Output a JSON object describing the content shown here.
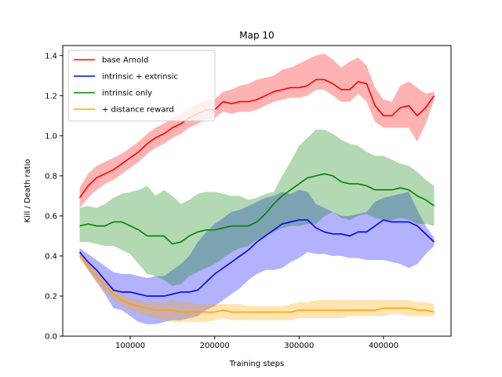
{
  "chart_data": {
    "type": "line",
    "title": "Map 10",
    "xlabel": "Training steps",
    "ylabel": "Kill / Death ratio",
    "xlim": [
      20000,
      480000
    ],
    "ylim": [
      0,
      1.45
    ],
    "xticks": [
      100000,
      200000,
      300000,
      400000
    ],
    "xtick_labels": [
      "100000",
      "200000",
      "300000",
      "400000"
    ],
    "yticks": [
      0.0,
      0.2,
      0.4,
      0.6,
      0.8,
      1.0,
      1.2,
      1.4
    ],
    "ytick_labels": [
      "0.0",
      "0.2",
      "0.4",
      "0.6",
      "0.8",
      "1.0",
      "1.2",
      "1.4"
    ],
    "grid": false,
    "legend_position": "top-left",
    "x": [
      40000,
      50000,
      60000,
      70000,
      80000,
      90000,
      100000,
      110000,
      120000,
      130000,
      140000,
      150000,
      160000,
      170000,
      180000,
      190000,
      200000,
      210000,
      220000,
      230000,
      240000,
      250000,
      260000,
      270000,
      280000,
      290000,
      300000,
      310000,
      320000,
      330000,
      340000,
      350000,
      360000,
      370000,
      380000,
      390000,
      400000,
      410000,
      420000,
      430000,
      440000,
      450000,
      460000
    ],
    "series": [
      {
        "name": "base Arnold",
        "color": "#ff0000",
        "values": [
          0.69,
          0.75,
          0.79,
          0.81,
          0.83,
          0.86,
          0.89,
          0.92,
          0.96,
          0.99,
          1.01,
          1.04,
          1.06,
          1.09,
          1.11,
          1.13,
          1.13,
          1.17,
          1.16,
          1.17,
          1.17,
          1.18,
          1.2,
          1.22,
          1.23,
          1.24,
          1.24,
          1.25,
          1.28,
          1.28,
          1.26,
          1.23,
          1.23,
          1.27,
          1.26,
          1.15,
          1.1,
          1.1,
          1.14,
          1.15,
          1.1,
          1.14,
          1.2
        ],
        "lower": [
          0.64,
          0.69,
          0.73,
          0.76,
          0.78,
          0.81,
          0.84,
          0.87,
          0.91,
          0.94,
          0.96,
          0.99,
          1.01,
          1.04,
          1.06,
          1.08,
          1.09,
          1.12,
          1.11,
          1.12,
          1.12,
          1.13,
          1.15,
          1.17,
          1.18,
          1.19,
          1.19,
          1.2,
          1.23,
          1.23,
          1.2,
          1.17,
          1.17,
          1.21,
          1.17,
          1.07,
          1.04,
          1.04,
          1.04,
          1.04,
          0.97,
          1.06,
          1.18
        ],
        "upper": [
          0.74,
          0.81,
          0.85,
          0.87,
          0.89,
          0.91,
          0.94,
          0.97,
          1.01,
          1.04,
          1.06,
          1.09,
          1.11,
          1.14,
          1.16,
          1.18,
          1.18,
          1.22,
          1.23,
          1.25,
          1.26,
          1.28,
          1.29,
          1.3,
          1.33,
          1.34,
          1.36,
          1.38,
          1.4,
          1.41,
          1.38,
          1.34,
          1.37,
          1.39,
          1.35,
          1.24,
          1.18,
          1.17,
          1.25,
          1.27,
          1.24,
          1.21,
          1.22
        ]
      },
      {
        "name": "intrinsic + extrinsic",
        "color": "#0000ff",
        "values": [
          0.42,
          0.37,
          0.33,
          0.28,
          0.23,
          0.22,
          0.22,
          0.21,
          0.2,
          0.2,
          0.2,
          0.21,
          0.22,
          0.22,
          0.23,
          0.27,
          0.31,
          0.34,
          0.37,
          0.4,
          0.43,
          0.47,
          0.5,
          0.53,
          0.56,
          0.57,
          0.58,
          0.58,
          0.54,
          0.52,
          0.51,
          0.51,
          0.5,
          0.52,
          0.52,
          0.55,
          0.58,
          0.57,
          0.57,
          0.57,
          0.55,
          0.51,
          0.47
        ],
        "lower": [
          0.4,
          0.33,
          0.27,
          0.21,
          0.14,
          0.13,
          0.1,
          0.07,
          0.06,
          0.06,
          0.07,
          0.08,
          0.08,
          0.09,
          0.1,
          0.13,
          0.15,
          0.18,
          0.21,
          0.24,
          0.28,
          0.31,
          0.33,
          0.33,
          0.34,
          0.37,
          0.39,
          0.42,
          0.41,
          0.41,
          0.4,
          0.4,
          0.39,
          0.39,
          0.38,
          0.38,
          0.38,
          0.37,
          0.36,
          0.34,
          0.36,
          0.41,
          0.45
        ],
        "upper": [
          0.44,
          0.41,
          0.38,
          0.35,
          0.32,
          0.31,
          0.31,
          0.3,
          0.29,
          0.3,
          0.3,
          0.33,
          0.36,
          0.4,
          0.47,
          0.52,
          0.56,
          0.59,
          0.62,
          0.63,
          0.65,
          0.67,
          0.69,
          0.7,
          0.72,
          0.71,
          0.73,
          0.72,
          0.66,
          0.64,
          0.62,
          0.6,
          0.6,
          0.61,
          0.62,
          0.67,
          0.69,
          0.7,
          0.71,
          0.72,
          0.63,
          0.55,
          0.49
        ]
      },
      {
        "name": "intrinsic only",
        "color": "#008000",
        "values": [
          0.55,
          0.56,
          0.55,
          0.55,
          0.57,
          0.57,
          0.55,
          0.53,
          0.5,
          0.5,
          0.5,
          0.46,
          0.47,
          0.5,
          0.52,
          0.53,
          0.53,
          0.54,
          0.55,
          0.55,
          0.55,
          0.57,
          0.61,
          0.66,
          0.7,
          0.73,
          0.76,
          0.79,
          0.8,
          0.81,
          0.8,
          0.77,
          0.76,
          0.76,
          0.75,
          0.73,
          0.73,
          0.73,
          0.74,
          0.73,
          0.7,
          0.68,
          0.65
        ],
        "lower": [
          0.47,
          0.47,
          0.46,
          0.45,
          0.45,
          0.43,
          0.41,
          0.36,
          0.31,
          0.3,
          0.28,
          0.25,
          0.26,
          0.3,
          0.32,
          0.34,
          0.36,
          0.39,
          0.42,
          0.44,
          0.45,
          0.48,
          0.5,
          0.52,
          0.54,
          0.55,
          0.55,
          0.56,
          0.56,
          0.6,
          0.62,
          0.59,
          0.58,
          0.6,
          0.61,
          0.59,
          0.58,
          0.58,
          0.59,
          0.58,
          0.56,
          0.56,
          0.55
        ],
        "upper": [
          0.64,
          0.65,
          0.64,
          0.66,
          0.69,
          0.71,
          0.72,
          0.73,
          0.75,
          0.7,
          0.73,
          0.7,
          0.66,
          0.68,
          0.71,
          0.72,
          0.72,
          0.71,
          0.7,
          0.7,
          0.68,
          0.69,
          0.71,
          0.72,
          0.8,
          0.87,
          0.95,
          0.99,
          1.03,
          1.03,
          1.01,
          0.98,
          0.96,
          0.95,
          0.92,
          0.9,
          0.9,
          0.88,
          0.86,
          0.85,
          0.82,
          0.78,
          0.75
        ]
      },
      {
        "name": "+ distance reward",
        "color": "#ffa500",
        "values": [
          0.4,
          0.35,
          0.3,
          0.25,
          0.21,
          0.18,
          0.16,
          0.15,
          0.14,
          0.13,
          0.13,
          0.13,
          0.12,
          0.12,
          0.12,
          0.12,
          0.12,
          0.13,
          0.12,
          0.12,
          0.12,
          0.12,
          0.12,
          0.12,
          0.12,
          0.12,
          0.13,
          0.13,
          0.13,
          0.13,
          0.13,
          0.13,
          0.13,
          0.13,
          0.13,
          0.13,
          0.14,
          0.14,
          0.14,
          0.14,
          0.13,
          0.13,
          0.12
        ],
        "lower": [
          0.38,
          0.33,
          0.27,
          0.22,
          0.18,
          0.15,
          0.13,
          0.11,
          0.1,
          0.09,
          0.08,
          0.07,
          0.07,
          0.07,
          0.07,
          0.07,
          0.08,
          0.09,
          0.08,
          0.08,
          0.08,
          0.08,
          0.08,
          0.08,
          0.08,
          0.08,
          0.09,
          0.09,
          0.09,
          0.09,
          0.09,
          0.09,
          0.1,
          0.1,
          0.1,
          0.1,
          0.1,
          0.11,
          0.11,
          0.1,
          0.1,
          0.1,
          0.1
        ],
        "upper": [
          0.42,
          0.37,
          0.33,
          0.28,
          0.24,
          0.21,
          0.19,
          0.18,
          0.17,
          0.17,
          0.17,
          0.18,
          0.17,
          0.17,
          0.16,
          0.16,
          0.16,
          0.16,
          0.16,
          0.16,
          0.15,
          0.15,
          0.15,
          0.15,
          0.15,
          0.16,
          0.17,
          0.17,
          0.18,
          0.18,
          0.18,
          0.18,
          0.18,
          0.18,
          0.18,
          0.18,
          0.18,
          0.18,
          0.18,
          0.18,
          0.17,
          0.17,
          0.16
        ]
      }
    ]
  }
}
